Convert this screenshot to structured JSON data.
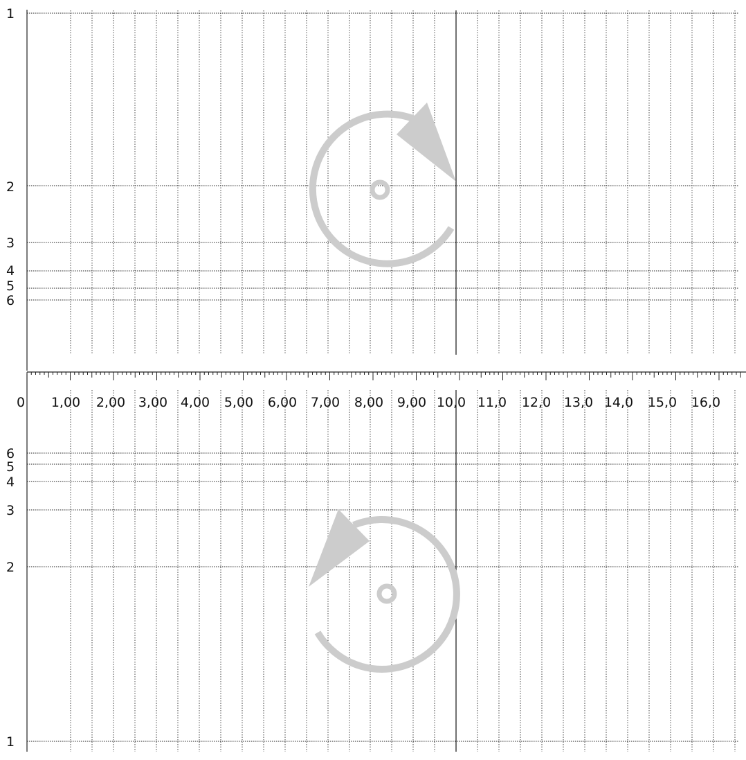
{
  "x_scale": {
    "labels": [
      "0",
      "1,00",
      "2,00",
      "3,00",
      "4,00",
      "5,00",
      "6,00",
      "7,00",
      "8,00",
      "9,00",
      "10,0",
      "11,0",
      "12,0",
      "13,0",
      "14,0",
      "15,0",
      "16,0"
    ]
  },
  "top_panel": {
    "row_labels": [
      "1",
      "2",
      "3",
      "4",
      "5",
      "6"
    ],
    "rotation": "clockwise"
  },
  "bottom_panel": {
    "row_labels": [
      "6",
      "5",
      "4",
      "3",
      "2",
      "1"
    ],
    "rotation": "counterclockwise"
  },
  "colors": {
    "grid": "#333333",
    "rotation_symbol": "#cccccc",
    "axis": "#222222"
  },
  "icons": {
    "top_symbol": "rotate-clockwise-icon",
    "bottom_symbol": "rotate-counterclockwise-icon"
  }
}
